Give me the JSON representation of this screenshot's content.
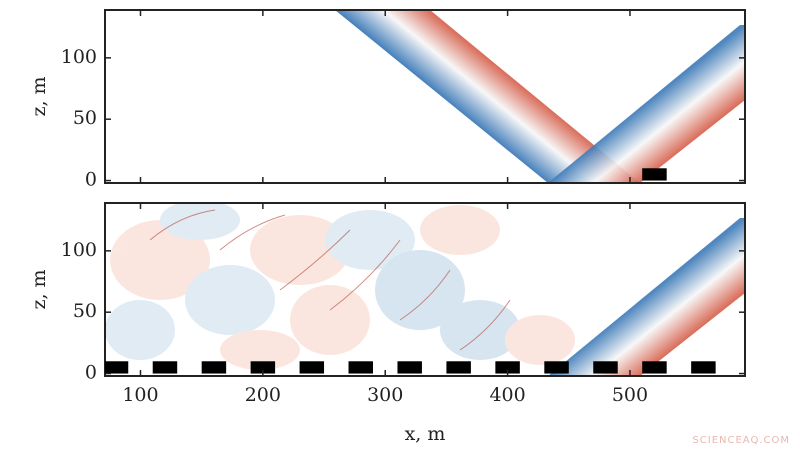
{
  "chart_data": [
    {
      "type": "field",
      "ylabel": "z, m",
      "xlim": [
        71,
        594
      ],
      "ylim": [
        -2,
        139
      ],
      "xticks": [
        100,
        200,
        300,
        400,
        500
      ],
      "yticks": [
        0,
        50,
        100
      ],
      "obstacles_x": [
        520
      ],
      "obstacle_width": 20,
      "obstacle_height": 10,
      "obstacle_color": "#000000"
    },
    {
      "type": "field",
      "xlabel": "x, m",
      "ylabel": "z, m",
      "xlim": [
        71,
        594
      ],
      "ylim": [
        -2,
        139
      ],
      "xticks": [
        100,
        200,
        300,
        400,
        500
      ],
      "yticks": [
        0,
        50,
        100
      ],
      "obstacles_x": [
        80,
        120,
        160,
        200,
        240,
        280,
        320,
        360,
        400,
        440,
        480,
        520,
        560
      ],
      "obstacle_width": 20,
      "obstacle_height": 10,
      "obstacle_color": "#000000"
    }
  ],
  "watermark": "SCIENCEAQ.COM"
}
